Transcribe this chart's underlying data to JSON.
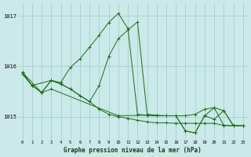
{
  "title": "Graphe pression niveau de la mer (hPa)",
  "bg_color": "#cce9e9",
  "grid_color": "#99cccc",
  "line_color": "#1a6b1a",
  "xlim": [
    -0.5,
    23.5
  ],
  "ylim": [
    1014.55,
    1017.25
  ],
  "yticks": [
    1015,
    1016,
    1017
  ],
  "xticks": [
    0,
    1,
    2,
    3,
    4,
    5,
    6,
    7,
    8,
    9,
    10,
    11,
    12,
    13,
    14,
    15,
    16,
    17,
    18,
    19,
    20,
    21,
    22,
    23
  ],
  "series1_x": [
    0,
    1,
    2,
    3,
    4,
    5,
    6,
    7,
    8,
    9,
    10,
    11,
    12,
    13,
    14,
    15,
    16,
    17,
    18,
    19,
    20,
    21,
    22,
    23
  ],
  "series1_y": [
    1015.85,
    1015.62,
    1015.48,
    1015.72,
    1015.65,
    1015.55,
    1015.42,
    1015.3,
    1015.15,
    1015.05,
    1015.0,
    1014.97,
    1014.93,
    1014.9,
    1014.88,
    1014.88,
    1014.87,
    1014.87,
    1014.87,
    1014.87,
    1014.87,
    1014.83,
    1014.82,
    1014.82
  ],
  "series2_x": [
    0,
    1,
    2,
    3,
    4,
    5,
    6,
    7,
    8,
    9,
    10,
    11,
    12,
    13,
    14,
    15,
    16,
    17,
    18,
    19,
    20,
    21,
    22,
    23
  ],
  "series2_y": [
    1015.85,
    1015.62,
    1015.48,
    1015.72,
    1015.65,
    1015.55,
    1015.42,
    1015.3,
    1015.62,
    1016.2,
    1016.55,
    1016.72,
    1016.88,
    1015.05,
    1015.03,
    1015.02,
    1015.02,
    1015.02,
    1015.05,
    1015.15,
    1015.18,
    1014.83,
    1014.82,
    1014.82
  ],
  "series3_x": [
    0,
    1,
    3,
    4,
    5,
    6,
    7,
    8,
    9,
    10,
    11,
    12,
    13,
    14,
    15,
    16,
    17,
    18,
    19,
    20,
    21,
    22,
    23
  ],
  "series3_y": [
    1015.88,
    1015.62,
    1015.72,
    1015.68,
    1015.98,
    1016.15,
    1016.38,
    1016.62,
    1016.87,
    1017.05,
    1016.75,
    1015.05,
    1015.03,
    1015.02,
    1015.02,
    1015.02,
    1014.72,
    1014.68,
    1015.02,
    1014.95,
    1015.12,
    1014.82,
    1014.82
  ],
  "series4_x": [
    0,
    2,
    3,
    10,
    13,
    14,
    15,
    16,
    17,
    18,
    19,
    20,
    21,
    22,
    23
  ],
  "series4_y": [
    1015.88,
    1015.48,
    1015.55,
    1015.02,
    1015.03,
    1015.02,
    1015.02,
    1015.02,
    1014.72,
    1014.68,
    1015.02,
    1015.18,
    1015.12,
    1014.83,
    1014.82
  ]
}
